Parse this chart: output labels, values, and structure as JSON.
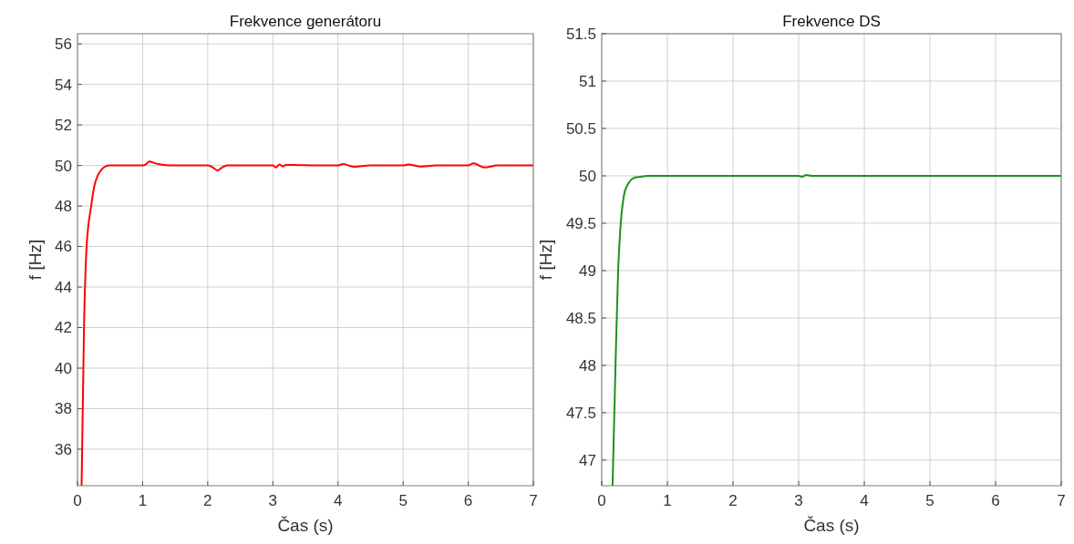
{
  "chart_data": [
    {
      "type": "line",
      "title": "Frekvence generátoru",
      "xlabel": "Čas (s)",
      "ylabel": "f [Hz]",
      "xlim": [
        0,
        7
      ],
      "xticks": [
        0,
        1,
        2,
        3,
        4,
        5,
        6,
        7
      ],
      "ylim": [
        34.2,
        56.5
      ],
      "yticks": [
        36,
        38,
        40,
        42,
        44,
        46,
        48,
        50,
        52,
        54,
        56
      ],
      "grid": true,
      "series": [
        {
          "color": "#ff0000",
          "x": [
            0.063,
            0.1,
            0.14,
            0.21,
            0.26,
            0.31,
            0.37,
            0.43,
            0.5,
            0.7,
            1.0,
            1.05,
            1.1,
            1.2,
            1.35,
            1.5,
            2.0,
            2.08,
            2.15,
            2.22,
            2.3,
            2.5,
            3.0,
            3.05,
            3.1,
            3.15,
            3.2,
            3.4,
            4.0,
            4.08,
            4.25,
            4.5,
            5.0,
            5.08,
            5.25,
            5.5,
            6.0,
            6.08,
            6.25,
            6.45,
            7.0
          ],
          "values": [
            34.2,
            42,
            46,
            48,
            49,
            49.5,
            49.8,
            49.95,
            50,
            50,
            50,
            50.05,
            50.2,
            50.1,
            50.02,
            50,
            50,
            49.9,
            49.75,
            49.9,
            50,
            50,
            50,
            49.9,
            50.05,
            49.95,
            50.03,
            50.02,
            50,
            50.07,
            49.93,
            50,
            50,
            50.05,
            49.95,
            50,
            50,
            50.1,
            49.9,
            50,
            50
          ]
        }
      ]
    },
    {
      "type": "line",
      "title": "Frekvence DS",
      "xlabel": "Čas (s)",
      "ylabel": "f [Hz]",
      "xlim": [
        0,
        7
      ],
      "xticks": [
        0,
        1,
        2,
        3,
        4,
        5,
        6,
        7
      ],
      "ylim": [
        46.73,
        51.5
      ],
      "yticks": [
        47,
        47.5,
        48,
        48.5,
        49,
        49.5,
        50,
        50.5,
        51,
        51.5
      ],
      "grid": true,
      "series": [
        {
          "color": "#1f8f1f",
          "x": [
            0.165,
            0.21,
            0.25,
            0.29,
            0.34,
            0.39,
            0.45,
            0.5,
            0.6,
            0.7,
            1.0,
            2.0,
            3.0,
            3.05,
            3.12,
            3.2,
            4.0,
            5.0,
            6.0,
            7.0
          ],
          "values": [
            46.73,
            48,
            49,
            49.5,
            49.8,
            49.9,
            49.96,
            49.98,
            49.99,
            50,
            50,
            50,
            50,
            49.99,
            50.01,
            50,
            50,
            50,
            50,
            50
          ]
        }
      ]
    }
  ]
}
